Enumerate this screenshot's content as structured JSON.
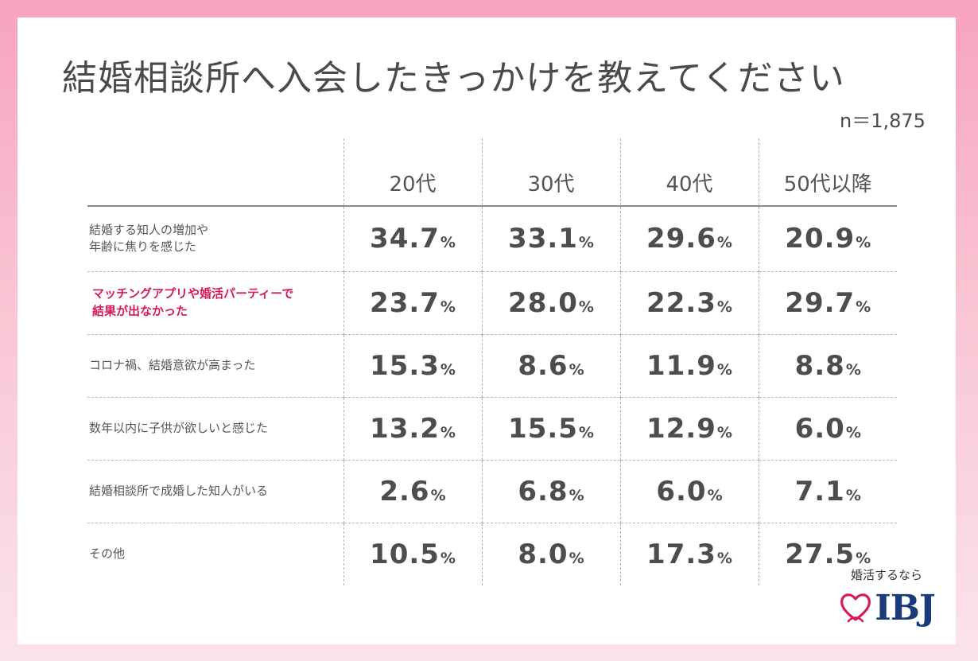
{
  "title": "結婚相談所へ入会したきっかけを教えてください",
  "sample_size": "n＝1,875",
  "brand": {
    "tagline": "婚活するなら",
    "name": "IBJ"
  },
  "colors": {
    "highlight": "#d8195e",
    "text": "#4d4d4d",
    "brand_blue": "#1a3b7a",
    "heart": "#d8195e"
  },
  "chart_data": {
    "type": "table",
    "title": "結婚相談所へ入会したきっかけを教えてください",
    "unit": "%",
    "columns": [
      "20代",
      "30代",
      "40代",
      "50代以降"
    ],
    "rows": [
      {
        "label": "結婚する知人の増加や\n年齢に焦りを感じた",
        "values": [
          "34.7",
          "33.1",
          "29.6",
          "20.9"
        ],
        "highlight": false
      },
      {
        "label": "マッチングアプリや婚活パーティーで\n結果が出なかった",
        "values": [
          "23.7",
          "28.0",
          "22.3",
          "29.7"
        ],
        "highlight": true
      },
      {
        "label": "コロナ禍、結婚意欲が高まった",
        "values": [
          "15.3",
          "8.6",
          "11.9",
          "8.8"
        ],
        "highlight": false
      },
      {
        "label": "数年以内に子供が欲しいと感じた",
        "values": [
          "13.2",
          "15.5",
          "12.9",
          "6.0"
        ],
        "highlight": false
      },
      {
        "label": "結婚相談所で成婚した知人がいる",
        "values": [
          "2.6",
          "6.8",
          "6.0",
          "7.1"
        ],
        "highlight": false
      },
      {
        "label": "その他",
        "values": [
          "10.5",
          "8.0",
          "17.3",
          "27.5"
        ],
        "highlight": false
      }
    ]
  }
}
